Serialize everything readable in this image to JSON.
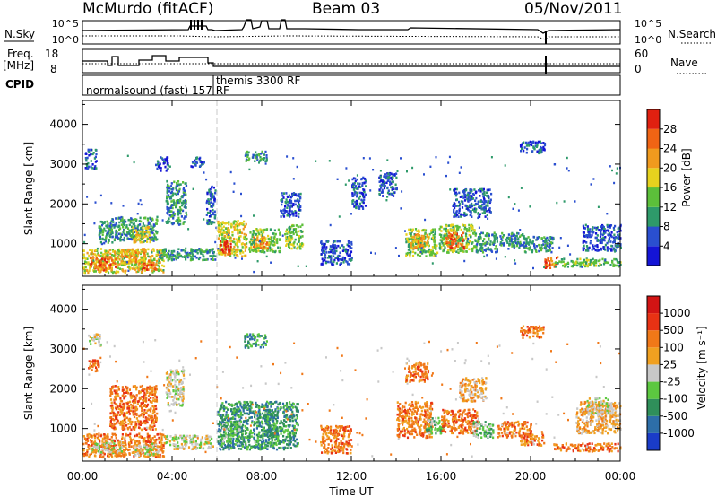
{
  "header": {
    "title": "McMurdo (fitACF)",
    "beam": "Beam 03",
    "date": "05/Nov/2011"
  },
  "noise_panel": {
    "left_label": "N.Sky",
    "right_label": "N.Search",
    "left_ticks": [
      "10^5",
      "10^0"
    ],
    "right_ticks": [
      "10^5",
      "10^0"
    ]
  },
  "freq_panel": {
    "left_label_1": "Freq.",
    "left_label_2": "[MHz]",
    "right_label": "Nave",
    "left_ticks": [
      "18",
      "8"
    ],
    "right_ticks": [
      "60",
      "0"
    ],
    "cpid_label": "CPID",
    "cpid_entries": [
      "normalsound (fast) 157 RF",
      "themis 3300 RF"
    ]
  },
  "chart_data": [
    {
      "type": "heatmap",
      "title": "",
      "xlabel": "Time UT",
      "ylabel": "Slant Range [km]",
      "colorbar_label": "Power [dB]",
      "x_ticks": [
        "00:00",
        "04:00",
        "08:00",
        "12:00",
        "16:00",
        "20:00",
        "00:00"
      ],
      "y_ticks": [
        "1000",
        "2000",
        "3000",
        "4000"
      ],
      "xlim": [
        0,
        24
      ],
      "ylim": [
        180,
        4600
      ],
      "colorbar_ticks": [
        "4",
        "8",
        "12",
        "16",
        "20",
        "24",
        "28"
      ],
      "colorbar_colors": [
        "#1414d6",
        "#2a4fd0",
        "#2e9a6a",
        "#5cbf3a",
        "#e6d21e",
        "#f09a1e",
        "#f06414",
        "#e02010"
      ],
      "patches": [
        {
          "t0": 0.0,
          "t1": 3.6,
          "r0": 300,
          "r1": 900,
          "lv": 4
        },
        {
          "t0": 0.3,
          "t1": 1.5,
          "r0": 350,
          "r1": 700,
          "lv": 6
        },
        {
          "t0": 1.7,
          "t1": 2.8,
          "r0": 500,
          "r1": 900,
          "lv": 5
        },
        {
          "t0": 2.6,
          "t1": 3.3,
          "r0": 350,
          "r1": 600,
          "lv": 6
        },
        {
          "t0": 3.3,
          "t1": 5.9,
          "r0": 600,
          "r1": 900,
          "lv": 2
        },
        {
          "t0": 1.2,
          "t1": 3.3,
          "r0": 1100,
          "r1": 1700,
          "lv": 2
        },
        {
          "t0": 2.2,
          "t1": 3.0,
          "r0": 1050,
          "r1": 1450,
          "lv": 4
        },
        {
          "t0": 0.7,
          "t1": 1.3,
          "r0": 1000,
          "r1": 1600,
          "lv": 2
        },
        {
          "t0": 3.7,
          "t1": 4.6,
          "r0": 1500,
          "r1": 2600,
          "lv": 2
        },
        {
          "t0": 5.5,
          "t1": 5.9,
          "r0": 1500,
          "r1": 2500,
          "lv": 1
        },
        {
          "t0": 0.1,
          "t1": 0.6,
          "r0": 2900,
          "r1": 3400,
          "lv": 1
        },
        {
          "t0": 3.2,
          "t1": 3.8,
          "r0": 2850,
          "r1": 3200,
          "lv": 1
        },
        {
          "t0": 4.8,
          "t1": 5.4,
          "r0": 2950,
          "r1": 3200,
          "lv": 1
        },
        {
          "t0": 6.0,
          "t1": 7.3,
          "r0": 700,
          "r1": 1600,
          "lv": 4
        },
        {
          "t0": 6.1,
          "t1": 6.6,
          "r0": 750,
          "r1": 1100,
          "lv": 7
        },
        {
          "t0": 7.4,
          "t1": 8.8,
          "r0": 800,
          "r1": 1400,
          "lv": 3
        },
        {
          "t0": 7.6,
          "t1": 8.3,
          "r0": 900,
          "r1": 1200,
          "lv": 5
        },
        {
          "t0": 9.0,
          "t1": 9.8,
          "r0": 900,
          "r1": 1500,
          "lv": 3
        },
        {
          "t0": 8.8,
          "t1": 9.7,
          "r0": 1700,
          "r1": 2300,
          "lv": 1
        },
        {
          "t0": 7.2,
          "t1": 8.2,
          "r0": 3100,
          "r1": 3350,
          "lv": 2
        },
        {
          "t0": 10.6,
          "t1": 12.0,
          "r0": 500,
          "r1": 1100,
          "lv": 1
        },
        {
          "t0": 12.0,
          "t1": 12.6,
          "r0": 1900,
          "r1": 2700,
          "lv": 1
        },
        {
          "t0": 13.2,
          "t1": 14.0,
          "r0": 2200,
          "r1": 2800,
          "lv": 1
        },
        {
          "t0": 14.4,
          "t1": 15.8,
          "r0": 700,
          "r1": 1400,
          "lv": 3
        },
        {
          "t0": 14.6,
          "t1": 15.4,
          "r0": 900,
          "r1": 1300,
          "lv": 5
        },
        {
          "t0": 15.9,
          "t1": 17.5,
          "r0": 800,
          "r1": 1500,
          "lv": 3
        },
        {
          "t0": 16.2,
          "t1": 17.0,
          "r0": 900,
          "r1": 1300,
          "lv": 6
        },
        {
          "t0": 17.5,
          "t1": 18.5,
          "r0": 800,
          "r1": 1300,
          "lv": 2
        },
        {
          "t0": 18.6,
          "t1": 19.8,
          "r0": 900,
          "r1": 1300,
          "lv": 2
        },
        {
          "t0": 19.7,
          "t1": 21.0,
          "r0": 800,
          "r1": 1200,
          "lv": 2
        },
        {
          "t0": 20.6,
          "t1": 21.2,
          "r0": 400,
          "r1": 700,
          "lv": 6
        },
        {
          "t0": 21.0,
          "t1": 24.0,
          "r0": 450,
          "r1": 650,
          "lv": 3
        },
        {
          "t0": 22.3,
          "t1": 24.0,
          "r0": 850,
          "r1": 1500,
          "lv": 1
        },
        {
          "t0": 16.5,
          "t1": 18.2,
          "r0": 1700,
          "r1": 2400,
          "lv": 1
        },
        {
          "t0": 19.5,
          "t1": 20.6,
          "r0": 3300,
          "r1": 3600,
          "lv": 1
        }
      ]
    },
    {
      "type": "heatmap",
      "title": "",
      "xlabel": "Time UT",
      "ylabel": "Slant Range [km]",
      "colorbar_label": "Velocity [m s⁻¹]",
      "x_ticks": [
        "00:00",
        "04:00",
        "08:00",
        "12:00",
        "16:00",
        "20:00",
        "00:00"
      ],
      "y_ticks": [
        "1000",
        "2000",
        "3000",
        "4000"
      ],
      "xlim": [
        0,
        24
      ],
      "ylim": [
        180,
        4600
      ],
      "colorbar_ticks": [
        "1000",
        "500",
        "100",
        "25",
        "-25",
        "-100",
        "-500",
        "-1000"
      ],
      "colorbar_colors": [
        "#1a3cc8",
        "#2d6ea8",
        "#2f8f5a",
        "#5cc840",
        "#c8c8c8",
        "#f0a020",
        "#f07818",
        "#e83214",
        "#d21414"
      ],
      "patches": [
        {
          "t0": 0.0,
          "t1": 3.6,
          "r0": 300,
          "r1": 900,
          "lv": 6
        },
        {
          "t0": 0.4,
          "t1": 1.8,
          "r0": 400,
          "r1": 700,
          "lv": 4
        },
        {
          "t0": 2.3,
          "t1": 3.4,
          "r0": 350,
          "r1": 650,
          "lv": 4
        },
        {
          "t0": 3.6,
          "t1": 5.8,
          "r0": 500,
          "r1": 850,
          "lv": 4
        },
        {
          "t0": 1.2,
          "t1": 3.3,
          "r0": 1000,
          "r1": 2100,
          "lv": 6
        },
        {
          "t0": 0.2,
          "t1": 0.7,
          "r0": 2450,
          "r1": 2750,
          "lv": 6
        },
        {
          "t0": 0.2,
          "t1": 0.8,
          "r0": 3100,
          "r1": 3400,
          "lv": 4
        },
        {
          "t0": 3.7,
          "t1": 4.5,
          "r0": 1600,
          "r1": 2500,
          "lv": 4
        },
        {
          "t0": 6.0,
          "t1": 9.6,
          "r0": 500,
          "r1": 1700,
          "lv": 2
        },
        {
          "t0": 6.2,
          "t1": 7.0,
          "r0": 700,
          "r1": 1200,
          "lv": 3
        },
        {
          "t0": 8.0,
          "t1": 8.7,
          "r0": 800,
          "r1": 1500,
          "lv": 2
        },
        {
          "t0": 7.2,
          "t1": 8.2,
          "r0": 3050,
          "r1": 3400,
          "lv": 2
        },
        {
          "t0": 10.6,
          "t1": 12.0,
          "r0": 400,
          "r1": 1100,
          "lv": 6
        },
        {
          "t0": 14.0,
          "t1": 15.6,
          "r0": 800,
          "r1": 1700,
          "lv": 6
        },
        {
          "t0": 15.3,
          "t1": 16.1,
          "r0": 900,
          "r1": 1300,
          "lv": 3
        },
        {
          "t0": 16.0,
          "t1": 17.6,
          "r0": 900,
          "r1": 1500,
          "lv": 6
        },
        {
          "t0": 17.4,
          "t1": 18.3,
          "r0": 800,
          "r1": 1200,
          "lv": 3
        },
        {
          "t0": 18.5,
          "t1": 20.0,
          "r0": 800,
          "r1": 1200,
          "lv": 6
        },
        {
          "t0": 19.5,
          "t1": 20.6,
          "r0": 600,
          "r1": 900,
          "lv": 6
        },
        {
          "t0": 21.0,
          "t1": 24.0,
          "r0": 450,
          "r1": 650,
          "lv": 6
        },
        {
          "t0": 22.0,
          "t1": 24.0,
          "r0": 900,
          "r1": 1700,
          "lv": 5
        },
        {
          "t0": 22.5,
          "t1": 23.6,
          "r0": 1400,
          "r1": 1800,
          "lv": 4
        },
        {
          "t0": 14.4,
          "t1": 15.4,
          "r0": 2200,
          "r1": 2700,
          "lv": 6
        },
        {
          "t0": 16.8,
          "t1": 18.0,
          "r0": 1700,
          "r1": 2300,
          "lv": 5
        },
        {
          "t0": 19.5,
          "t1": 20.6,
          "r0": 3300,
          "r1": 3600,
          "lv": 6
        }
      ]
    }
  ]
}
